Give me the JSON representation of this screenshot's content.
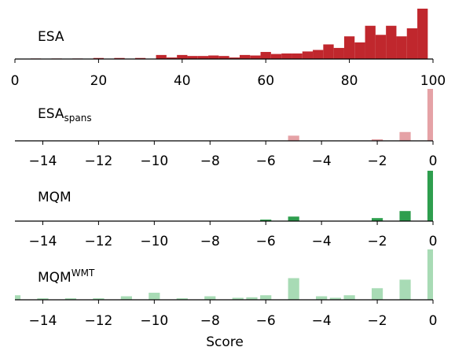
{
  "chart_data": [
    {
      "type": "bar",
      "panel_label": "ESA",
      "label_sub": "",
      "label_sup": "",
      "color": "#c0272d",
      "xlim": [
        0,
        100
      ],
      "ylim": [
        0,
        1
      ],
      "xticks": [
        0,
        20,
        40,
        60,
        80,
        100
      ],
      "bin_width": 2.5,
      "x": [
        5,
        10,
        15,
        20,
        25,
        30,
        35,
        37.5,
        40,
        42.5,
        45,
        47.5,
        50,
        52.5,
        55,
        57.5,
        60,
        62.5,
        65,
        67.5,
        70,
        72.5,
        75,
        77.5,
        80,
        82.5,
        85,
        87.5,
        90,
        92.5,
        95,
        97.5
      ],
      "values": [
        0.01,
        0.01,
        0.01,
        0.02,
        0.02,
        0.02,
        0.08,
        0.03,
        0.08,
        0.06,
        0.06,
        0.07,
        0.06,
        0.03,
        0.08,
        0.07,
        0.14,
        0.1,
        0.11,
        0.11,
        0.15,
        0.18,
        0.29,
        0.22,
        0.45,
        0.33,
        0.66,
        0.48,
        0.66,
        0.45,
        0.61,
        1.0
      ]
    },
    {
      "type": "bar",
      "panel_label": "ESA",
      "label_sub": "spans",
      "label_sup": "",
      "color": "#e5a2a6",
      "xlim": [
        -15,
        0
      ],
      "ylim": [
        0,
        1
      ],
      "xticks": [
        -14,
        -12,
        -10,
        -8,
        -6,
        -4,
        -2,
        0
      ],
      "bin_width": 0.4,
      "x": [
        -5,
        -2,
        -1,
        0
      ],
      "values": [
        0.1,
        0.03,
        0.17,
        1.0
      ]
    },
    {
      "type": "bar",
      "panel_label": "MQM",
      "label_sub": "",
      "label_sup": "",
      "color": "#2e9e4e",
      "xlim": [
        -15,
        0
      ],
      "ylim": [
        0,
        1
      ],
      "xticks": [
        -14,
        -12,
        -10,
        -8,
        -6,
        -4,
        -2,
        0
      ],
      "bin_width": 0.4,
      "x": [
        -6,
        -5,
        -2,
        -1,
        0
      ],
      "values": [
        0.03,
        0.09,
        0.06,
        0.2,
        1.0
      ]
    },
    {
      "type": "bar",
      "panel_label": "MQM",
      "label_sub": "",
      "label_sup": "WMT",
      "color": "#a8dbb5",
      "xlim": [
        -15,
        0
      ],
      "ylim": [
        0,
        1
      ],
      "xticks": [
        -14,
        -12,
        -10,
        -8,
        -6,
        -4,
        -2,
        0
      ],
      "xlabel": "Score",
      "bin_width": 0.4,
      "x": [
        -15,
        -14,
        -13,
        -12,
        -11,
        -10,
        -9,
        -8,
        -7,
        -6.5,
        -6,
        -5,
        -4,
        -3.5,
        -3,
        -2,
        -1,
        0
      ],
      "values": [
        0.09,
        0.03,
        0.03,
        0.03,
        0.07,
        0.14,
        0.03,
        0.07,
        0.04,
        0.05,
        0.09,
        0.43,
        0.07,
        0.04,
        0.09,
        0.23,
        0.4,
        1.0
      ]
    }
  ]
}
